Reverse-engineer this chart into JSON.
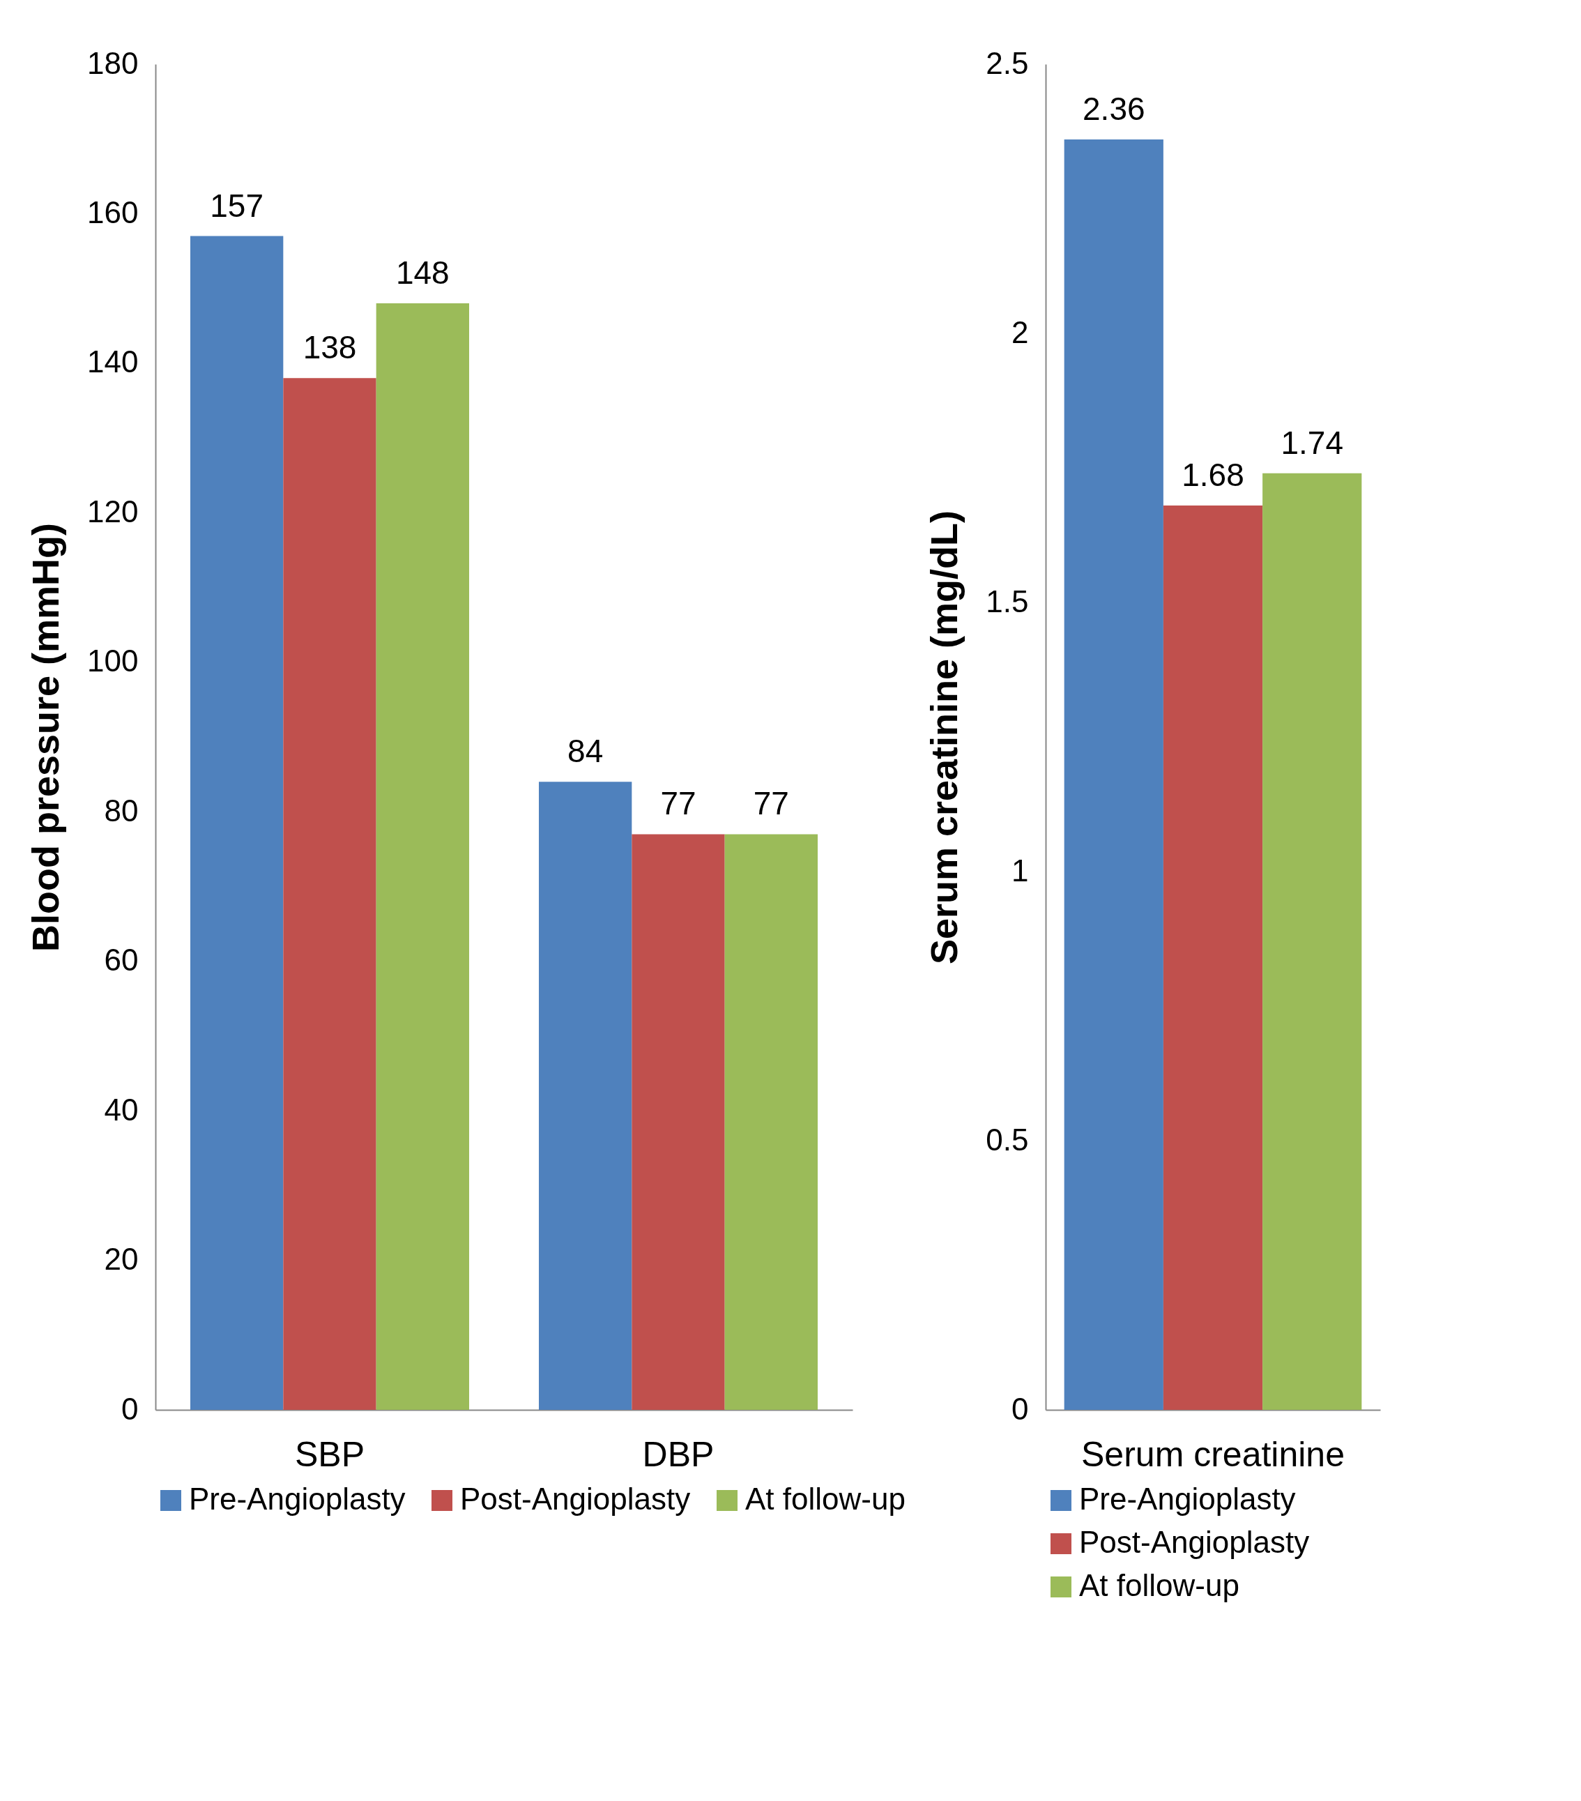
{
  "chart_data": [
    {
      "type": "bar",
      "ylabel": "Blood pressure (mmHg)",
      "categories": [
        "SBP",
        "DBP"
      ],
      "series": [
        {
          "name": "Pre-Angioplasty",
          "color": "#4f81bd",
          "values": [
            157,
            84
          ]
        },
        {
          "name": "Post-Angioplasty",
          "color": "#c0504d",
          "values": [
            138,
            77
          ]
        },
        {
          "name": "At follow-up",
          "color": "#9bbb59",
          "values": [
            148,
            77
          ]
        }
      ],
      "ylim": [
        0,
        180
      ],
      "yticks": [
        0,
        20,
        40,
        60,
        80,
        100,
        120,
        140,
        160,
        180
      ],
      "data_labels": true,
      "legend": "bottom",
      "grid": false
    },
    {
      "type": "bar",
      "ylabel": "Serum creatinine (mg/dL)",
      "categories": [
        "Serum creatinine"
      ],
      "series": [
        {
          "name": "Pre-Angioplasty",
          "color": "#4f81bd",
          "values": [
            2.36
          ]
        },
        {
          "name": "Post-Angioplasty",
          "color": "#c0504d",
          "values": [
            1.68
          ]
        },
        {
          "name": "At follow-up",
          "color": "#9bbb59",
          "values": [
            1.74
          ]
        }
      ],
      "ylim": [
        0,
        2.5
      ],
      "yticks": [
        0,
        0.5,
        1,
        1.5,
        2,
        2.5
      ],
      "data_labels": true,
      "legend": "bottom",
      "grid": false
    }
  ]
}
